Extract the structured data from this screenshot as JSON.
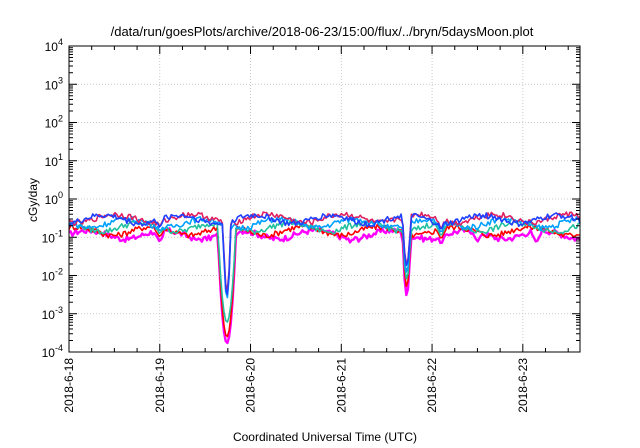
{
  "chart_data": {
    "type": "line",
    "title": "/data/run/goesPlots/archive/2018-06-23/15:00/flux/../bryn/5daysMoon.plot",
    "xlabel": "Coordinated Universal Time (UTC)",
    "ylabel": "cGy/day",
    "y_scale": "log",
    "ylim": [
      0.0001,
      10000
    ],
    "y_ticks": [
      {
        "value": 0.0001,
        "base": "10",
        "exp": "-4"
      },
      {
        "value": 0.001,
        "base": "10",
        "exp": "-3"
      },
      {
        "value": 0.01,
        "base": "10",
        "exp": "-2"
      },
      {
        "value": 0.1,
        "base": "10",
        "exp": "-1"
      },
      {
        "value": 1,
        "base": "10",
        "exp": "0"
      },
      {
        "value": 10,
        "base": "10",
        "exp": "1"
      },
      {
        "value": 100,
        "base": "10",
        "exp": "2"
      },
      {
        "value": 1000,
        "base": "10",
        "exp": "3"
      },
      {
        "value": 10000,
        "base": "10",
        "exp": "4"
      }
    ],
    "x_ticks": [
      {
        "value": 0,
        "label": "2018-6-18"
      },
      {
        "value": 1,
        "label": "2018-6-19"
      },
      {
        "value": 2,
        "label": "2018-6-20"
      },
      {
        "value": 3,
        "label": "2018-6-21"
      },
      {
        "value": 4,
        "label": "2018-6-22"
      },
      {
        "value": 5,
        "label": "2018-6-23"
      }
    ],
    "xlim": [
      0,
      5.63
    ],
    "grid": true,
    "legend": "none",
    "series": [
      {
        "color": "#ff00ff",
        "level": 0.12,
        "minor_dips": [
          {
            "x": 1.0,
            "y": 0.075
          },
          {
            "x": 1.4,
            "y": 0.08
          },
          {
            "x": 3.1,
            "y": 0.07
          },
          {
            "x": 3.8,
            "y": 0.085
          },
          {
            "x": 4.1,
            "y": 0.06
          },
          {
            "x": 4.5,
            "y": 0.075
          },
          {
            "x": 5.15,
            "y": 0.07
          }
        ],
        "dips": [
          {
            "x": 1.74,
            "y": 0.00017
          },
          {
            "x": 3.72,
            "y": 0.003
          }
        ]
      },
      {
        "color": "#ff0000",
        "level": 0.15,
        "minor_dips": [
          {
            "x": 1.0,
            "y": 0.1
          },
          {
            "x": 4.1,
            "y": 0.085
          }
        ],
        "dips": [
          {
            "x": 1.74,
            "y": 0.00025
          },
          {
            "x": 3.72,
            "y": 0.005
          }
        ]
      },
      {
        "color": "#20c0a0",
        "level": 0.19,
        "minor_dips": [
          {
            "x": 1.0,
            "y": 0.12
          },
          {
            "x": 4.1,
            "y": 0.1
          }
        ],
        "dips": [
          {
            "x": 1.74,
            "y": 0.0006
          },
          {
            "x": 3.72,
            "y": 0.008
          }
        ]
      },
      {
        "color": "#00a0ff",
        "level": 0.24,
        "minor_dips": [
          {
            "x": 1.0,
            "y": 0.14
          },
          {
            "x": 4.1,
            "y": 0.12
          }
        ],
        "dips": [
          {
            "x": 1.74,
            "y": 0.0025
          },
          {
            "x": 3.72,
            "y": 0.012
          }
        ]
      },
      {
        "color": "#e02060",
        "level": 0.32,
        "minor_dips": [
          {
            "x": 1.0,
            "y": 0.18
          },
          {
            "x": 4.1,
            "y": 0.15
          }
        ],
        "dips": [
          {
            "x": 1.74,
            "y": 0.004
          },
          {
            "x": 3.72,
            "y": 0.02
          }
        ]
      },
      {
        "color": "#2040ff",
        "level": 0.3,
        "minor_dips": [
          {
            "x": 1.0,
            "y": 0.17
          },
          {
            "x": 4.1,
            "y": 0.14
          }
        ],
        "dips": [
          {
            "x": 1.74,
            "y": 0.003
          },
          {
            "x": 3.72,
            "y": 0.018
          }
        ]
      }
    ]
  }
}
